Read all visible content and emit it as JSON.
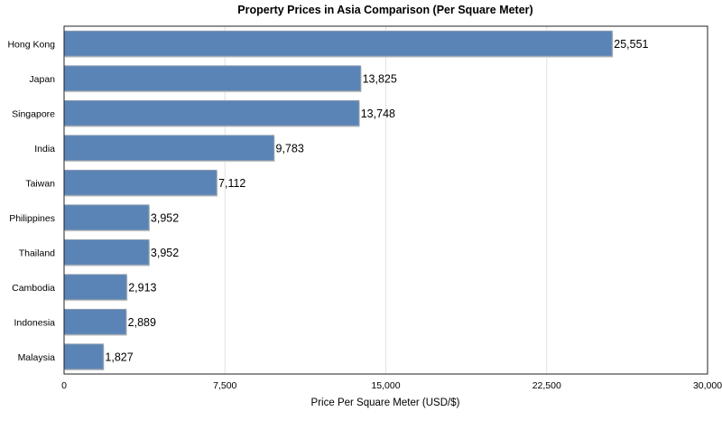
{
  "chart_data": {
    "type": "bar",
    "orientation": "horizontal",
    "title": "Property Prices in Asia Comparison (Per Square Meter)",
    "xlabel": "Price Per Square Meter (USD/$)",
    "ylabel": "",
    "categories": [
      "Hong Kong",
      "Japan",
      "Singapore",
      "India",
      "Taiwan",
      "Philippines",
      "Thailand",
      "Cambodia",
      "Indonesia",
      "Malaysia"
    ],
    "values": [
      25551,
      13825,
      13748,
      9783,
      7112,
      3952,
      3952,
      2913,
      2889,
      1827
    ],
    "value_labels": [
      "25,551",
      "13,825",
      "13,748",
      "9,783",
      "7,112",
      "3,952",
      "3,952",
      "2,913",
      "2,889",
      "1,827"
    ],
    "xlim": [
      0,
      30000
    ],
    "xticks": [
      0,
      7500,
      15000,
      22500,
      30000
    ],
    "xtick_labels": [
      "0",
      "7,500",
      "15,000",
      "22,500",
      "30,000"
    ],
    "grid": "vertical",
    "legend": "none",
    "colors": {
      "bar": "#5b84b6",
      "bar_edge": "#8a9bb0",
      "grid": "#e2e2e2"
    }
  }
}
